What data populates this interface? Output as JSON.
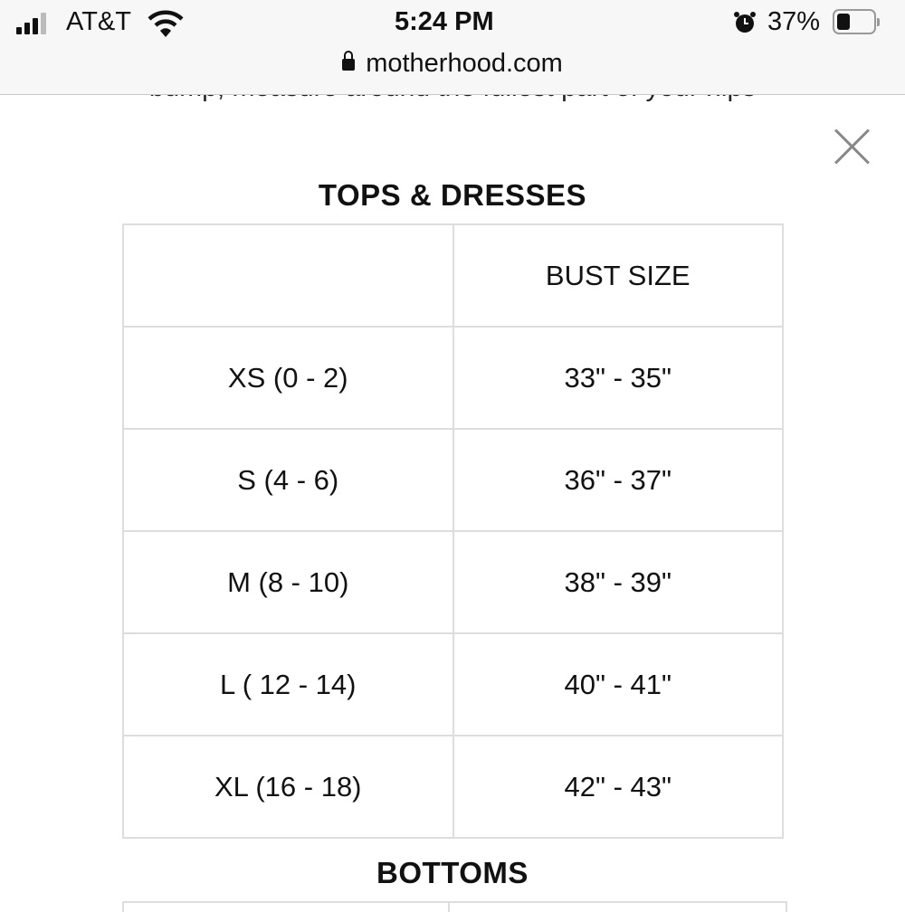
{
  "status_bar": {
    "carrier": "AT&T",
    "time": "5:24 PM",
    "battery": "37%",
    "battery_level": 0.37,
    "icons": [
      "signal-icon",
      "wifi-icon",
      "alarm-icon",
      "battery-icon"
    ]
  },
  "browser": {
    "url": "motherhood.com"
  },
  "intro_text": "bump, measure around the fullest part of your hips",
  "tops": {
    "title": "TOPS & DRESSES",
    "header": [
      "",
      "BUST SIZE"
    ],
    "rows": [
      [
        "XS (0 - 2)",
        "33\" - 35\""
      ],
      [
        "S (4 - 6)",
        "36\" - 37\""
      ],
      [
        "M (8 - 10)",
        "38\" - 39\""
      ],
      [
        "L ( 12 - 14)",
        "40\" - 41\""
      ],
      [
        "XL (16 - 18)",
        "42\" - 43\""
      ]
    ]
  },
  "bottoms": {
    "title": "BOTTOMS"
  }
}
